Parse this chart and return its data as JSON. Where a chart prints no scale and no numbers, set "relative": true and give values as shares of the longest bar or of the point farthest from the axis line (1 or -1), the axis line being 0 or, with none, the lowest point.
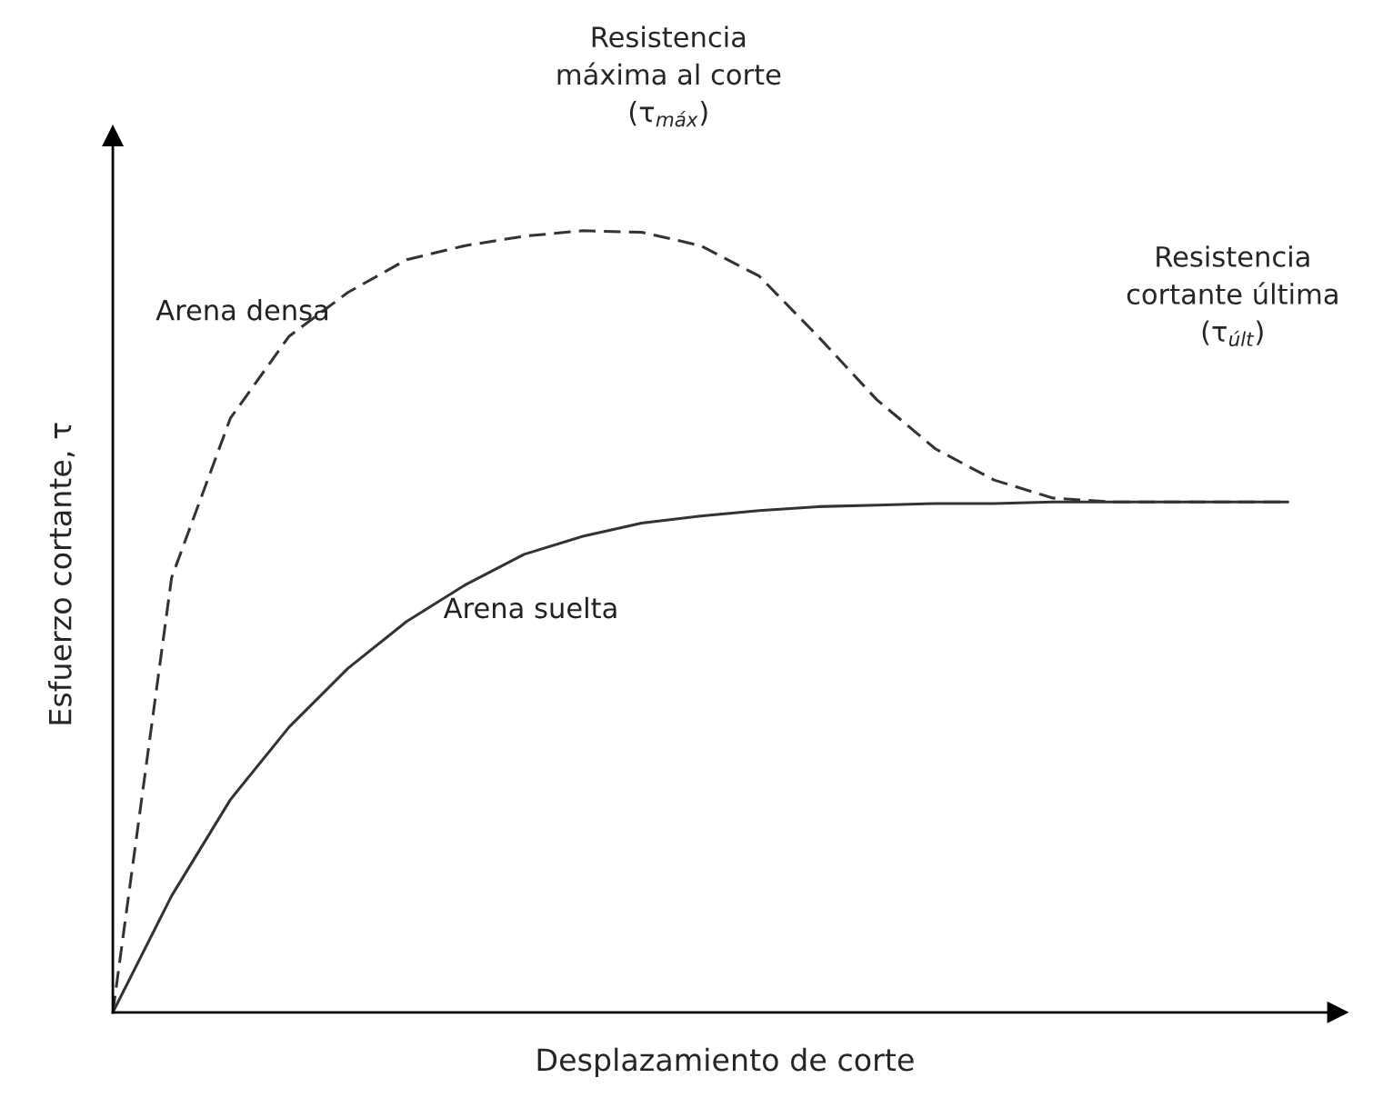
{
  "chart_data": {
    "type": "line",
    "relative": true,
    "xlabel": "Desplazamiento de corte",
    "ylabel": "Esfuerzo cortante, τ",
    "categories": [
      null,
      null,
      null,
      null,
      null,
      null,
      null,
      null,
      null,
      null,
      null,
      null,
      null,
      null,
      null,
      null,
      null,
      null,
      null,
      null,
      null
    ],
    "series": [
      {
        "name": "Arena densa",
        "color": "#333333",
        "line_style": "dashed",
        "values": [
          0,
          0.556,
          0.76,
          0.865,
          0.921,
          0.963,
          0.981,
          0.993,
          1.0,
          0.998,
          0.981,
          0.942,
          0.865,
          0.784,
          0.721,
          0.681,
          0.658,
          0.653,
          0.653,
          0.653,
          0.653
        ]
      },
      {
        "name": "Arena suelta",
        "color": "#333333",
        "line_style": "solid",
        "values": [
          0,
          0.149,
          0.272,
          0.365,
          0.44,
          0.5,
          0.547,
          0.586,
          0.609,
          0.626,
          0.635,
          0.642,
          0.647,
          0.649,
          0.651,
          0.651,
          0.653,
          0.653,
          0.653,
          0.653,
          0.653
        ]
      }
    ],
    "annotations": [
      "Resistencia\nmáxima al corte\n(τ$_{máx}$)",
      "Resistencia\ncortante última\n(τ$_{últ}$)"
    ],
    "grid": false,
    "legend": false,
    "tick_labels": false,
    "marker": "none"
  }
}
